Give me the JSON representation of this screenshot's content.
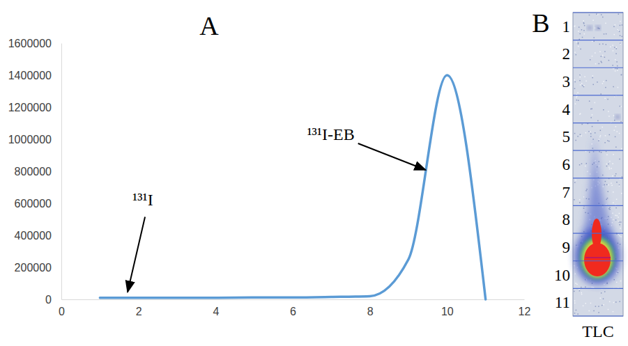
{
  "chart_data": [
    {
      "type": "line",
      "title": "A",
      "x": [
        1,
        2,
        3,
        4,
        5,
        6,
        7,
        8,
        9,
        10,
        11
      ],
      "values": [
        10000,
        10000,
        10000,
        10000,
        12000,
        12000,
        15000,
        20000,
        250000,
        1400000,
        0
      ],
      "color": "#5b9bd5",
      "xlim": [
        0,
        12
      ],
      "xticks": [
        0,
        2,
        4,
        6,
        8,
        10,
        12
      ],
      "ylim": [
        0,
        1600000
      ],
      "yticks": [
        0,
        200000,
        400000,
        600000,
        800000,
        1000000,
        1200000,
        1400000,
        1600000
      ],
      "grid": false,
      "annotations": [
        {
          "text": "¹³¹I-EB",
          "x": 9.5,
          "y": 800000
        },
        {
          "text": "¹³¹I",
          "x": 1.7,
          "y": 20000
        }
      ]
    },
    {
      "type": "tlc-image",
      "title": "B",
      "xlabel": "TLC",
      "categories": [
        1,
        2,
        3,
        4,
        5,
        6,
        7,
        8,
        9,
        10,
        11
      ]
    }
  ]
}
